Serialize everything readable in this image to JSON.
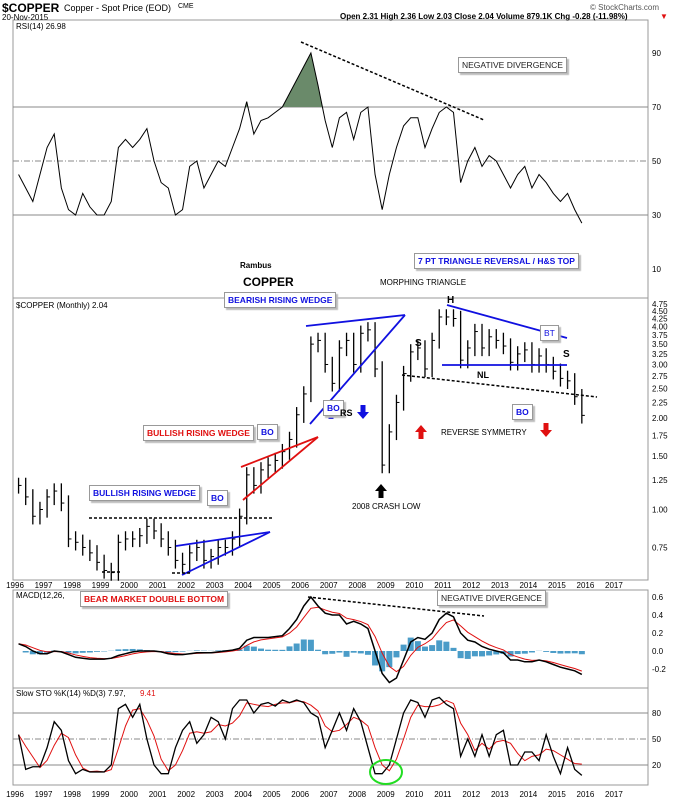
{
  "header": {
    "symbol": "$COPPER",
    "name": "Copper - Spot Price (EOD)",
    "exchange": "CME",
    "date": "20-Nov-2015",
    "copyright": "© StockCharts.com",
    "quote": "Open 2.31  High 2.36  Low 2.03  Close 2.04  Volume 879.1K  Chg -0.28 (-11.98%)"
  },
  "panels": {
    "rsi_label": "RSI(14) 26.98",
    "price_label": "$COPPER (Monthly) 2.04",
    "macd_label": "MACD(12,26,",
    "sto_label": "Slow STO %K(14) %D(3) 7.97,",
    "sto_d_value": "9.41"
  },
  "annotations": {
    "author": "Rambus",
    "title": "COPPER",
    "neg_div_rsi": "NEGATIVE DIVERGENCE",
    "triangle": "7 PT TRIANGLE REVERSAL / H&S TOP",
    "morphing": "MORPHING TRIANGLE",
    "bearish_wedge": "BEARISH RISING WEDGE",
    "head": "H",
    "left_shoulder": "S",
    "right_shoulder": "S",
    "bt": "BT",
    "nl": "NL",
    "bo1": "BO",
    "bo2": "BO",
    "bo3": "BO",
    "bo4": "BO",
    "rs": "RS",
    "bullish_wedge_red": "BULLISH RISING WEDGE",
    "reverse_symmetry": "REVERSE SYMMETRY",
    "crash_low": "2008 CRASH LOW",
    "bullish_wedge_blue": "BULLISH RISING WEDGE",
    "double_bottom": "BEAR MARKET DOUBLE BOTTOM",
    "neg_div_macd": "NEGATIVE DIVERGENCE"
  },
  "colors": {
    "up_arrow_blue": "#1010e0",
    "red": "#e01010",
    "macd_hist": "#4a9cc8",
    "rsi_fill": "#6a8a6a",
    "circle": "#22dd22"
  },
  "chart_data": [
    {
      "type": "line",
      "title": "RSI(14) 26.98",
      "ylim": [
        0,
        100
      ],
      "yticks": [
        10,
        30,
        50,
        70,
        90
      ],
      "x_start": 1996,
      "x_step": "quarter",
      "values": [
        45,
        40,
        35,
        45,
        55,
        60,
        40,
        32,
        30,
        38,
        33,
        30,
        30,
        35,
        55,
        58,
        55,
        58,
        62,
        50,
        42,
        40,
        30,
        32,
        48,
        50,
        40,
        45,
        50,
        48,
        55,
        62,
        72,
        60,
        65,
        66,
        68,
        70,
        75,
        80,
        85,
        90,
        78,
        65,
        55,
        66,
        68,
        58,
        68,
        70,
        45,
        32,
        45,
        55,
        63,
        66,
        66,
        55,
        62,
        68,
        70,
        68,
        42,
        50,
        55,
        48,
        52,
        50,
        45,
        40,
        45,
        48,
        40,
        45,
        42,
        38,
        35,
        38,
        32,
        27
      ]
    },
    {
      "type": "bar",
      "title": "$COPPER (Monthly) 2.04",
      "scale": "log",
      "yticks": [
        0.75,
        1.0,
        1.25,
        1.5,
        1.75,
        2.0,
        2.25,
        2.5,
        2.75,
        3.0,
        3.25,
        3.5,
        3.75,
        4.0,
        4.25,
        4.5,
        4.75
      ],
      "x_start": 1996,
      "x_step": "quarter",
      "close": [
        1.2,
        1.1,
        0.95,
        1.0,
        1.1,
        1.15,
        1.05,
        0.8,
        0.78,
        0.75,
        0.72,
        0.67,
        0.63,
        0.62,
        0.78,
        0.8,
        0.8,
        0.82,
        0.88,
        0.85,
        0.8,
        0.75,
        0.68,
        0.66,
        0.72,
        0.75,
        0.68,
        0.7,
        0.75,
        0.75,
        0.8,
        0.95,
        1.3,
        1.2,
        1.35,
        1.4,
        1.45,
        1.55,
        1.7,
        2.05,
        2.4,
        3.5,
        3.6,
        3.0,
        2.6,
        3.4,
        3.6,
        3.0,
        3.8,
        3.9,
        2.9,
        1.4,
        1.8,
        2.25,
        2.8,
        3.3,
        3.4,
        2.9,
        3.6,
        4.3,
        4.3,
        4.25,
        3.1,
        3.4,
        3.85,
        3.4,
        3.7,
        3.6,
        3.45,
        3.05,
        3.25,
        3.35,
        3.0,
        3.2,
        3.0,
        2.85,
        2.7,
        2.65,
        2.35,
        2.04
      ]
    },
    {
      "type": "line",
      "title": "MACD(12,26,",
      "ylim": [
        -0.4,
        0.65
      ],
      "yticks": [
        -0.2,
        0.0,
        0.2,
        0.4,
        0.6
      ],
      "x_start": 1996,
      "x_step": "quarter",
      "values": [
        0.08,
        0.05,
        0.0,
        -0.03,
        -0.03,
        0,
        -0.01,
        -0.04,
        -0.07,
        -0.08,
        -0.09,
        -0.09,
        -0.09,
        -0.08,
        -0.05,
        -0.03,
        -0.01,
        0.0,
        0.0,
        0.0,
        -0.01,
        -0.03,
        -0.04,
        -0.04,
        -0.03,
        -0.02,
        -0.02,
        -0.02,
        -0.01,
        0,
        0.01,
        0.03,
        0.12,
        0.15,
        0.15,
        0.15,
        0.16,
        0.17,
        0.25,
        0.35,
        0.5,
        0.6,
        0.5,
        0.42,
        0.4,
        0.4,
        0.3,
        0.33,
        0.3,
        0.25,
        0,
        -0.25,
        -0.35,
        -0.3,
        -0.1,
        0.1,
        0.15,
        0.13,
        0.2,
        0.35,
        0.42,
        0.38,
        0.2,
        0.12,
        0.1,
        0.05,
        0.02,
        0.0,
        -0.02,
        -0.1,
        -0.1,
        -0.12,
        -0.12,
        -0.1,
        -0.12,
        -0.15,
        -0.18,
        -0.2,
        -0.22,
        -0.26
      ]
    },
    {
      "type": "line",
      "title": "Slow STO %K(14) %D(3) 7.97, 9.41",
      "ylim": [
        0,
        100
      ],
      "yticks": [
        20,
        50,
        80
      ],
      "x_start": 1996,
      "x_step": "quarter",
      "values": [
        55,
        15,
        18,
        18,
        40,
        70,
        60,
        25,
        10,
        15,
        12,
        12,
        12,
        20,
        85,
        90,
        75,
        90,
        50,
        20,
        10,
        10,
        40,
        60,
        70,
        45,
        55,
        75,
        70,
        50,
        85,
        95,
        95,
        80,
        90,
        92,
        88,
        95,
        92,
        95,
        92,
        80,
        75,
        40,
        60,
        80,
        60,
        85,
        70,
        40,
        10,
        10,
        20,
        50,
        80,
        95,
        92,
        75,
        95,
        98,
        90,
        85,
        30,
        50,
        30,
        55,
        30,
        55,
        60,
        20,
        20,
        35,
        35,
        25,
        55,
        30,
        10,
        40,
        15,
        8
      ]
    }
  ],
  "x_axis": [
    "1996",
    "1997",
    "1998",
    "1999",
    "2000",
    "2001",
    "2002",
    "2003",
    "2004",
    "2005",
    "2006",
    "2007",
    "2008",
    "2009",
    "2010",
    "2011",
    "2012",
    "2013",
    "2014",
    "2015",
    "2016",
    "2017"
  ]
}
